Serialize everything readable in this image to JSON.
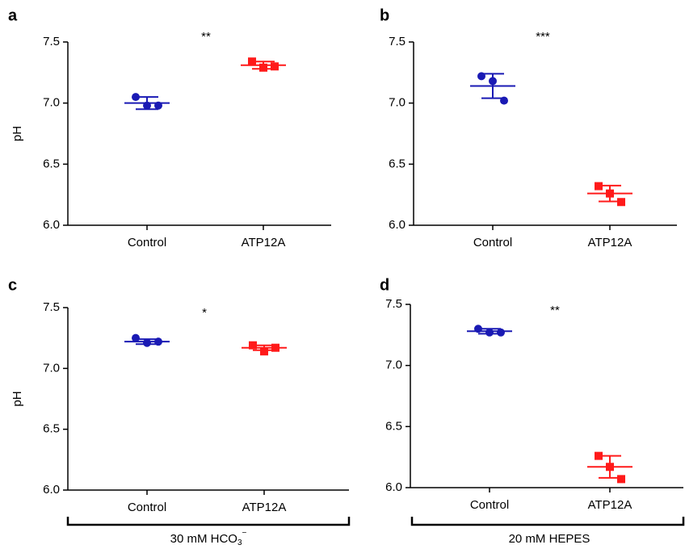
{
  "chart_data": [
    {
      "type": "dot",
      "label": "a",
      "significance": "**",
      "ylabel": "pH",
      "categories": [
        "Control",
        "ATP12A"
      ],
      "colors": [
        "#1a1ab4",
        "#ff1a1a"
      ],
      "markers": [
        "circle",
        "square"
      ],
      "values": [
        [
          7.05,
          6.98,
          6.98
        ],
        [
          7.34,
          7.29,
          7.3
        ]
      ],
      "means": [
        7.0,
        7.31
      ],
      "errors": [
        0.05,
        0.03
      ],
      "ylim": [
        6,
        7.5
      ],
      "yticks": [
        {
          "value": 6,
          "label": "6.0"
        },
        {
          "value": 6.5,
          "label": "6.5"
        },
        {
          "value": 7,
          "label": "7.0"
        },
        {
          "value": 7.5,
          "label": "7.5"
        }
      ]
    },
    {
      "type": "dot",
      "label": "b",
      "significance": "***",
      "categories": [
        "Control",
        "ATP12A"
      ],
      "colors": [
        "#1a1ab4",
        "#ff1a1a"
      ],
      "markers": [
        "circle",
        "square"
      ],
      "values": [
        [
          7.22,
          7.18,
          7.02
        ],
        [
          6.32,
          6.26,
          6.19
        ]
      ],
      "means": [
        7.14,
        6.26
      ],
      "errors": [
        0.1,
        0.065
      ],
      "ylim": [
        6,
        7.5
      ],
      "yticks": [
        {
          "value": 6,
          "label": "6.0"
        },
        {
          "value": 6.5,
          "label": "6.5"
        },
        {
          "value": 7,
          "label": "7.0"
        },
        {
          "value": 7.5,
          "label": "7.5"
        }
      ]
    },
    {
      "type": "dot",
      "label": "c",
      "significance": "*",
      "ylabel": "pH",
      "categories": [
        "Control",
        "ATP12A"
      ],
      "colors": [
        "#1a1ab4",
        "#ff1a1a"
      ],
      "markers": [
        "circle",
        "square"
      ],
      "values": [
        [
          7.25,
          7.21,
          7.22
        ],
        [
          7.19,
          7.14,
          7.17
        ]
      ],
      "means": [
        7.22,
        7.17
      ],
      "errors": [
        0.02,
        0.02
      ],
      "ylim": [
        6,
        7.5
      ],
      "yticks": [
        {
          "value": 6,
          "label": "6.0"
        },
        {
          "value": 6.5,
          "label": "6.5"
        },
        {
          "value": 7,
          "label": "7.0"
        },
        {
          "value": 7.5,
          "label": "7.5"
        }
      ]
    },
    {
      "type": "dot",
      "label": "d",
      "significance": "**",
      "categories": [
        "Control",
        "ATP12A"
      ],
      "colors": [
        "#1a1ab4",
        "#ff1a1a"
      ],
      "markers": [
        "circle",
        "square"
      ],
      "values": [
        [
          7.3,
          7.27,
          7.27
        ],
        [
          6.26,
          6.17,
          6.07
        ]
      ],
      "means": [
        7.28,
        6.17
      ],
      "errors": [
        0.02,
        0.09
      ],
      "ylim": [
        6,
        7.5
      ],
      "yticks": [
        {
          "value": 6,
          "label": "6.0"
        },
        {
          "value": 6.5,
          "label": "6.5"
        },
        {
          "value": 7,
          "label": "7.0"
        },
        {
          "value": 7.5,
          "label": "7.5"
        }
      ]
    }
  ],
  "brackets": [
    {
      "label": "30 mM HCO",
      "sub": "3",
      "sup": "−"
    },
    {
      "label": "20 mM HEPES"
    }
  ]
}
